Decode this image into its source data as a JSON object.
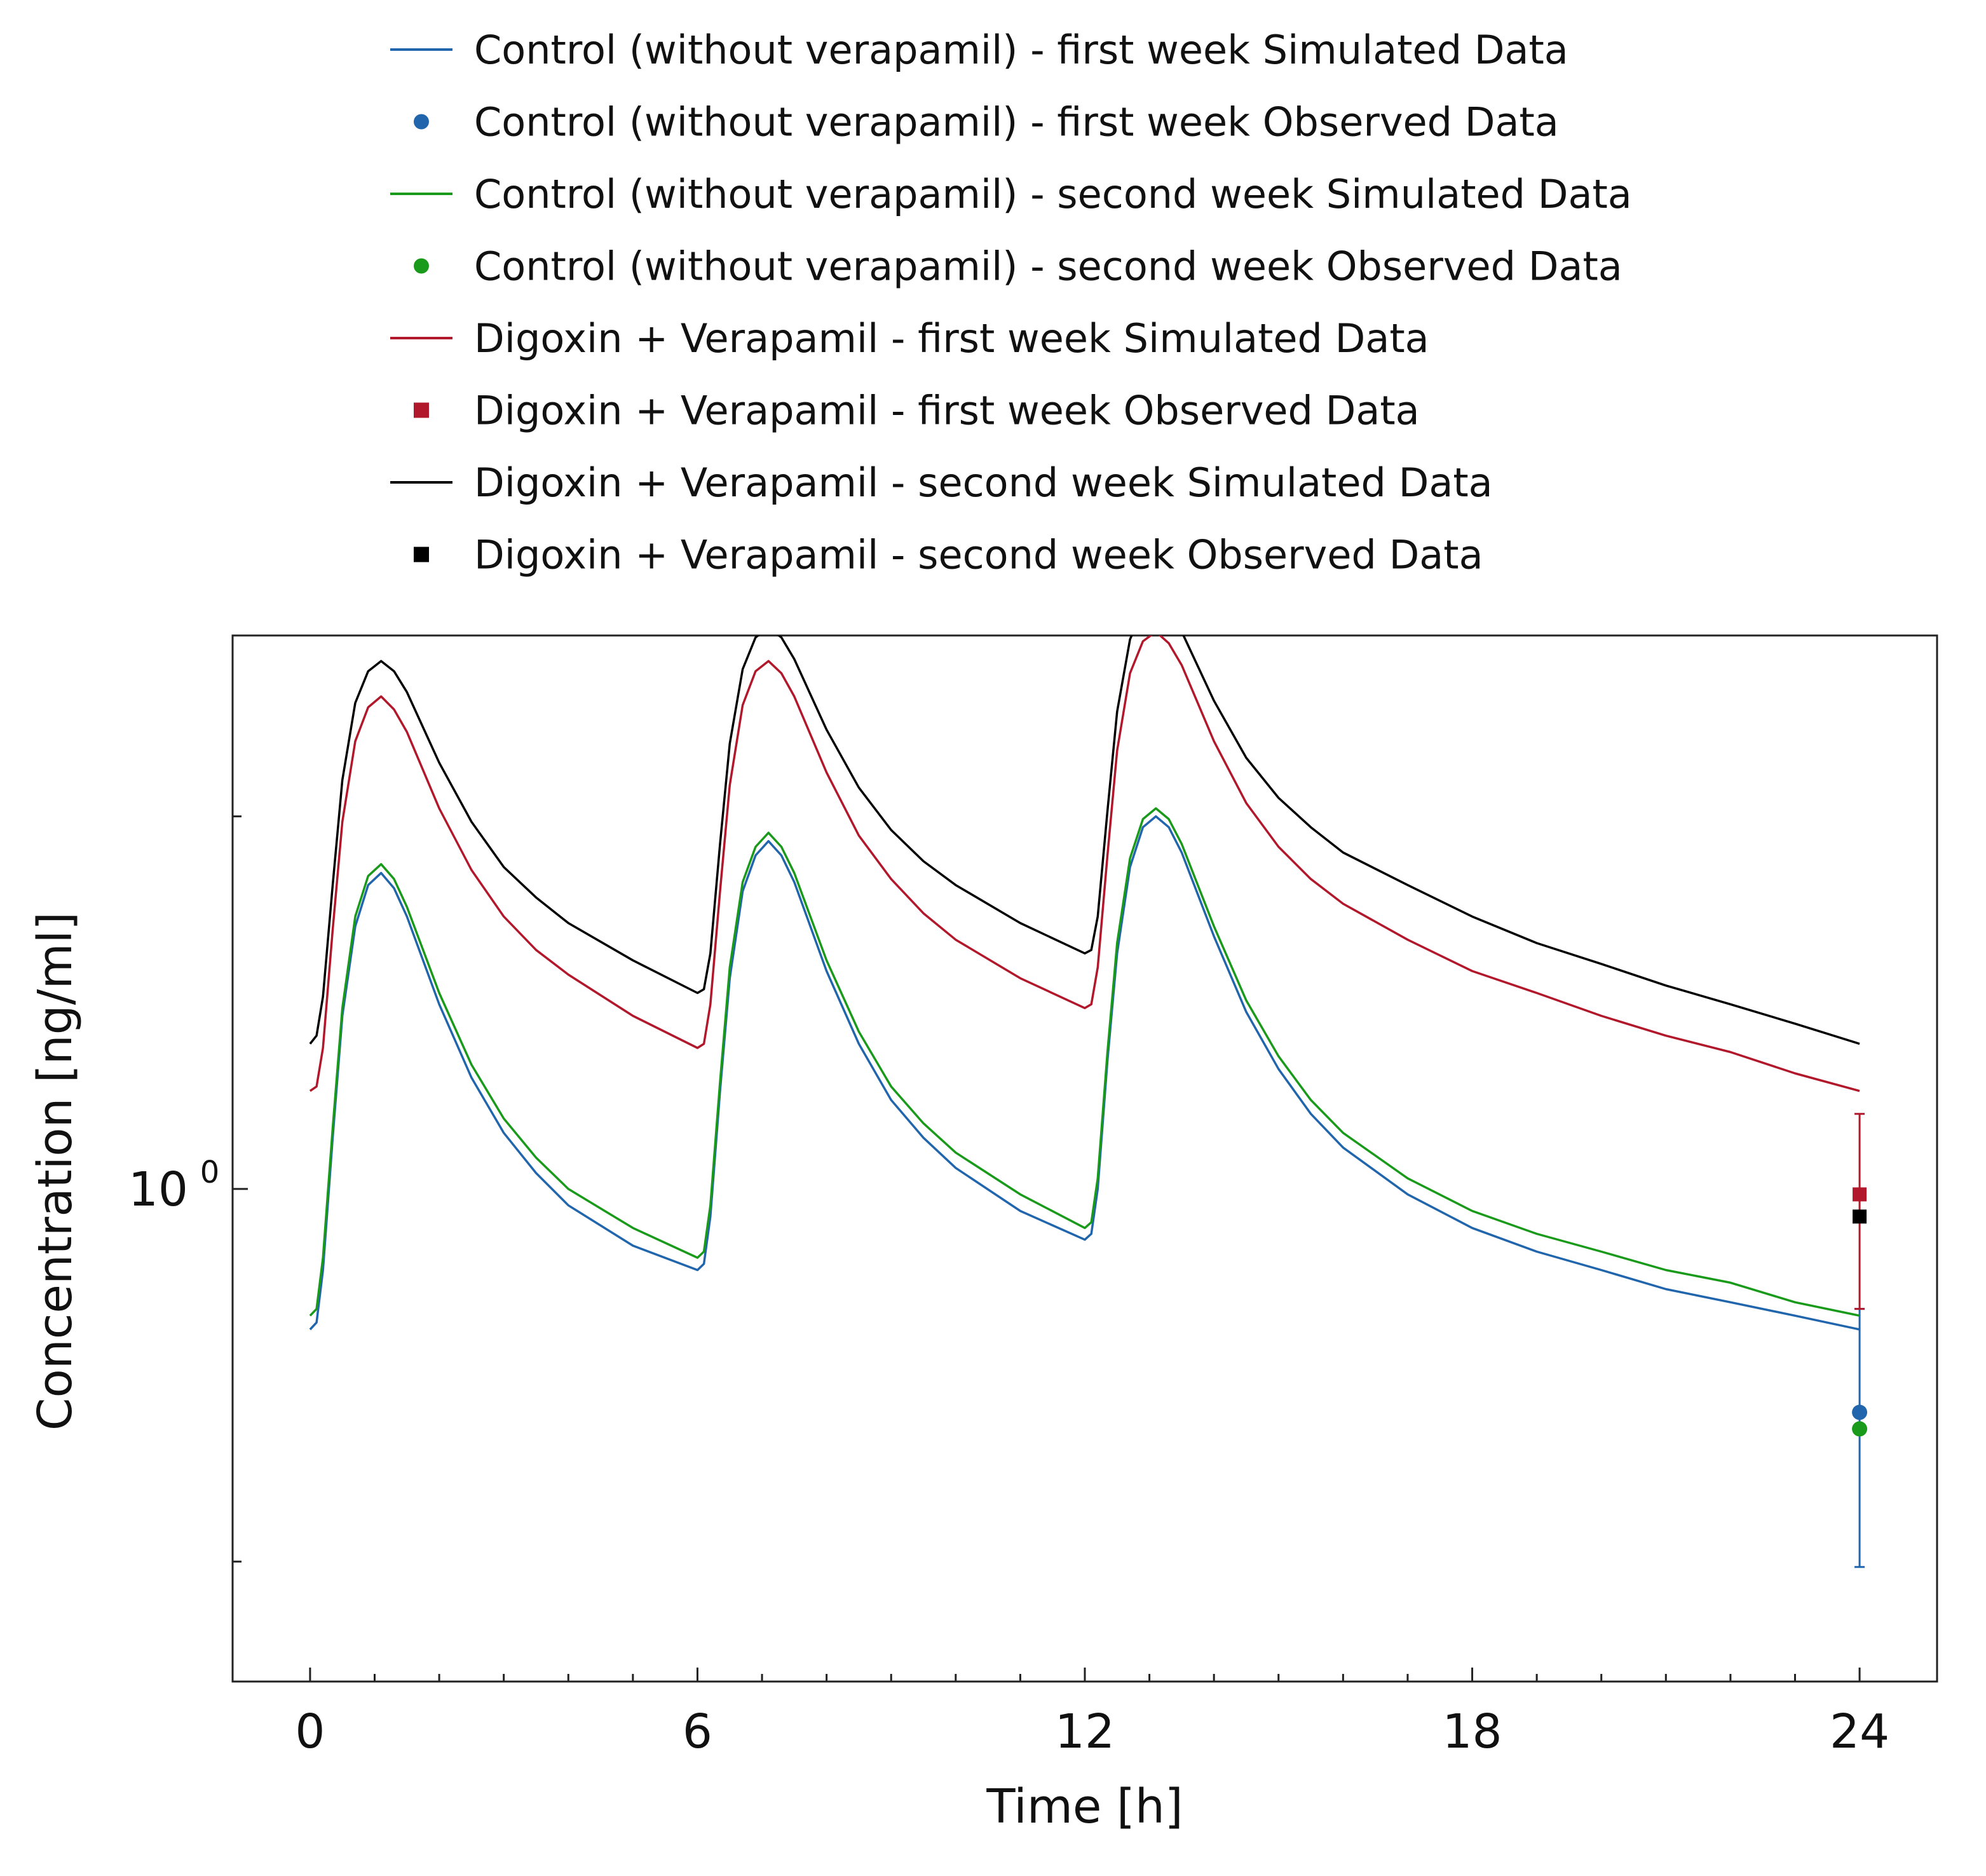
{
  "chart_data": {
    "type": "line",
    "title": "",
    "xlabel": "Time [h]",
    "ylabel": "Concentration [ng/ml]",
    "xlim": [
      -1.2,
      25.2
    ],
    "ylim": [
      0.4,
      2.8
    ],
    "y_scale": "log",
    "grid": false,
    "legend_position": "top",
    "x_ticks": [
      {
        "value": 0,
        "label": "0"
      },
      {
        "value": 6,
        "label": "6"
      },
      {
        "value": 12,
        "label": "12"
      },
      {
        "value": 18,
        "label": "18"
      },
      {
        "value": 24,
        "label": "24"
      }
    ],
    "y_ticks": [
      {
        "value": 1,
        "base": "10",
        "exponent": "0"
      }
    ],
    "y_minor_ticks": [
      0.5,
      2
    ],
    "dose_times": [
      0,
      6,
      12
    ],
    "series": [
      {
        "name": "Control (without verapamil) - first week Simulated Data",
        "kind": "line",
        "color": "#2166ac",
        "x": [
          0,
          0.1,
          0.2,
          0.35,
          0.5,
          0.7,
          0.9,
          1.1,
          1.3,
          1.5,
          2.0,
          2.5,
          3.0,
          3.5,
          4.0,
          5.0,
          6.0,
          6.1,
          6.2,
          6.35,
          6.5,
          6.7,
          6.9,
          7.1,
          7.3,
          7.5,
          8.0,
          8.5,
          9.0,
          9.5,
          10.0,
          11.0,
          12.0,
          12.1,
          12.2,
          12.35,
          12.5,
          12.7,
          12.9,
          13.1,
          13.3,
          13.5,
          14.0,
          14.5,
          15.0,
          15.5,
          16.0,
          17.0,
          18.0,
          19.0,
          20.0,
          21.0,
          22.0,
          23.0,
          24.0
        ],
        "y": [
          0.77,
          0.78,
          0.86,
          1.1,
          1.38,
          1.63,
          1.76,
          1.8,
          1.75,
          1.66,
          1.41,
          1.23,
          1.11,
          1.03,
          0.97,
          0.9,
          0.86,
          0.87,
          0.95,
          1.2,
          1.48,
          1.74,
          1.86,
          1.91,
          1.86,
          1.77,
          1.5,
          1.31,
          1.18,
          1.1,
          1.04,
          0.96,
          0.91,
          0.92,
          1.0,
          1.27,
          1.55,
          1.82,
          1.96,
          2.0,
          1.96,
          1.87,
          1.6,
          1.39,
          1.25,
          1.15,
          1.08,
          0.99,
          0.93,
          0.89,
          0.86,
          0.83,
          0.81,
          0.79,
          0.77
        ]
      },
      {
        "name": "Control (without verapamil) - first week Observed Data",
        "kind": "point",
        "marker": "circle",
        "color": "#2166ac",
        "x": [
          24
        ],
        "y": [
          0.66
        ],
        "error_low": [
          0.495
        ],
        "error_high": [
          0.8
        ]
      },
      {
        "name": "Control (without verapamil) - second week Simulated Data",
        "kind": "line",
        "color": "#1a9a1a",
        "x": [
          0,
          0.1,
          0.2,
          0.35,
          0.5,
          0.7,
          0.9,
          1.1,
          1.3,
          1.5,
          2.0,
          2.5,
          3.0,
          3.5,
          4.0,
          5.0,
          6.0,
          6.1,
          6.2,
          6.35,
          6.5,
          6.7,
          6.9,
          7.1,
          7.3,
          7.5,
          8.0,
          8.5,
          9.0,
          9.5,
          10.0,
          11.0,
          12.0,
          12.1,
          12.2,
          12.35,
          12.5,
          12.7,
          12.9,
          13.1,
          13.3,
          13.5,
          14.0,
          14.5,
          15.0,
          15.5,
          16.0,
          17.0,
          18.0,
          19.0,
          20.0,
          21.0,
          22.0,
          23.0,
          24.0
        ],
        "y": [
          0.79,
          0.8,
          0.88,
          1.12,
          1.4,
          1.66,
          1.79,
          1.83,
          1.78,
          1.69,
          1.44,
          1.26,
          1.14,
          1.06,
          1.0,
          0.93,
          0.88,
          0.89,
          0.97,
          1.22,
          1.51,
          1.77,
          1.89,
          1.94,
          1.89,
          1.8,
          1.53,
          1.34,
          1.21,
          1.13,
          1.07,
          0.99,
          0.93,
          0.94,
          1.02,
          1.29,
          1.58,
          1.85,
          1.99,
          2.03,
          1.99,
          1.9,
          1.63,
          1.42,
          1.28,
          1.18,
          1.11,
          1.02,
          0.96,
          0.92,
          0.89,
          0.86,
          0.84,
          0.81,
          0.79
        ]
      },
      {
        "name": "Control (without verapamil) - second week Observed Data",
        "kind": "point",
        "marker": "circle",
        "color": "#1a9a1a",
        "x": [
          24
        ],
        "y": [
          0.64
        ]
      },
      {
        "name": "Digoxin + Verapamil - first week Simulated Data",
        "kind": "line",
        "color": "#b2182b",
        "x": [
          0,
          0.1,
          0.2,
          0.35,
          0.5,
          0.7,
          0.9,
          1.1,
          1.3,
          1.5,
          2.0,
          2.5,
          3.0,
          3.5,
          4.0,
          5.0,
          6.0,
          6.1,
          6.2,
          6.35,
          6.5,
          6.7,
          6.9,
          7.1,
          7.3,
          7.5,
          8.0,
          8.5,
          9.0,
          9.5,
          10.0,
          11.0,
          12.0,
          12.1,
          12.2,
          12.35,
          12.5,
          12.7,
          12.9,
          13.1,
          13.3,
          13.5,
          14.0,
          14.5,
          15.0,
          15.5,
          16.0,
          17.0,
          18.0,
          19.0,
          20.0,
          21.0,
          22.0,
          23.0,
          24.0
        ],
        "y": [
          1.2,
          1.21,
          1.3,
          1.62,
          1.98,
          2.3,
          2.45,
          2.5,
          2.44,
          2.34,
          2.03,
          1.81,
          1.66,
          1.56,
          1.49,
          1.38,
          1.3,
          1.31,
          1.41,
          1.74,
          2.12,
          2.46,
          2.62,
          2.67,
          2.61,
          2.5,
          2.17,
          1.93,
          1.78,
          1.67,
          1.59,
          1.48,
          1.4,
          1.41,
          1.51,
          1.86,
          2.26,
          2.61,
          2.77,
          2.82,
          2.76,
          2.65,
          2.3,
          2.05,
          1.89,
          1.78,
          1.7,
          1.59,
          1.5,
          1.44,
          1.38,
          1.33,
          1.29,
          1.24,
          1.2
        ]
      },
      {
        "name": "Digoxin + Verapamil - first week Observed Data",
        "kind": "point",
        "marker": "square",
        "color": "#b2182b",
        "x": [
          24
        ],
        "y": [
          0.99
        ],
        "error_low": [
          0.8
        ],
        "error_high": [
          1.15
        ]
      },
      {
        "name": "Digoxin + Verapamil - second week Simulated Data",
        "kind": "line",
        "color": "#000000",
        "x": [
          0,
          0.1,
          0.2,
          0.35,
          0.5,
          0.7,
          0.9,
          1.1,
          1.3,
          1.5,
          2.0,
          2.5,
          3.0,
          3.5,
          4.0,
          5.0,
          6.0,
          6.1,
          6.2,
          6.35,
          6.5,
          6.7,
          6.9,
          7.1,
          7.3,
          7.5,
          8.0,
          8.5,
          9.0,
          9.5,
          10.0,
          11.0,
          12.0,
          12.1,
          12.2,
          12.35,
          12.5,
          12.7,
          12.9,
          13.1,
          13.3,
          13.5,
          14.0,
          14.5,
          15.0,
          15.5,
          16.0,
          17.0,
          18.0,
          19.0,
          20.0,
          21.0,
          22.0,
          23.0,
          24.0
        ],
        "y": [
          1.31,
          1.33,
          1.43,
          1.76,
          2.14,
          2.47,
          2.62,
          2.67,
          2.62,
          2.52,
          2.21,
          1.98,
          1.82,
          1.72,
          1.64,
          1.53,
          1.44,
          1.45,
          1.55,
          1.9,
          2.29,
          2.63,
          2.79,
          2.84,
          2.79,
          2.68,
          2.35,
          2.11,
          1.95,
          1.84,
          1.76,
          1.64,
          1.55,
          1.56,
          1.66,
          2.02,
          2.43,
          2.78,
          2.94,
          2.99,
          2.93,
          2.82,
          2.48,
          2.23,
          2.07,
          1.96,
          1.87,
          1.76,
          1.66,
          1.58,
          1.52,
          1.46,
          1.41,
          1.36,
          1.31
        ]
      },
      {
        "name": "Digoxin + Verapamil - second week Observed Data",
        "kind": "point",
        "marker": "square",
        "color": "#000000",
        "x": [
          24
        ],
        "y": [
          0.95
        ]
      }
    ]
  }
}
